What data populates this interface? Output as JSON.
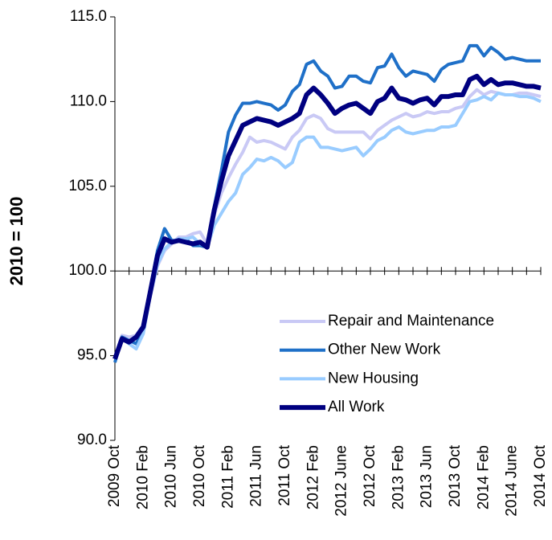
{
  "chart_data": {
    "type": "line",
    "y_label": "2010 = 100",
    "categories": [
      "2009 Oct",
      null,
      null,
      null,
      "2010 Feb",
      null,
      null,
      null,
      "2010 Jun",
      null,
      null,
      null,
      "2010 Oct",
      null,
      null,
      null,
      "2011 Feb",
      null,
      null,
      null,
      "2011 Jun",
      null,
      null,
      null,
      "2011 Oct",
      null,
      null,
      null,
      "2012 Feb",
      null,
      null,
      null,
      "2012 June",
      null,
      null,
      null,
      "2012 Oct",
      null,
      null,
      null,
      "2013 Feb",
      null,
      null,
      null,
      "2013 Jun",
      null,
      null,
      null,
      "2013 Oct",
      null,
      null,
      null,
      "2014 Feb",
      null,
      null,
      null,
      "2014 June",
      null,
      null,
      null,
      "2014 Oct"
    ],
    "series": [
      {
        "name": "Repair and Maintenance",
        "color": "#c9c9f5",
        "values": [
          94.9,
          96.2,
          96.1,
          96.2,
          96.8,
          98.5,
          100.3,
          101.2,
          101.6,
          102.0,
          102.0,
          102.2,
          102.3,
          101.6,
          103.3,
          104.6,
          105.5,
          106.3,
          107.0,
          107.9,
          107.6,
          107.7,
          107.6,
          107.4,
          107.2,
          107.9,
          108.3,
          109.0,
          109.2,
          109.0,
          108.4,
          108.2,
          108.2,
          108.2,
          108.2,
          108.2,
          107.8,
          108.3,
          108.6,
          108.9,
          109.1,
          109.3,
          109.1,
          109.2,
          109.4,
          109.3,
          109.4,
          109.4,
          109.6,
          109.7,
          110.3,
          110.7,
          110.4,
          110.6,
          110.5,
          110.4,
          110.4,
          110.5,
          110.5,
          110.4,
          110.3
        ]
      },
      {
        "name": "Other New Work",
        "color": "#1f70c8",
        "values": [
          94.6,
          96.1,
          95.9,
          95.7,
          96.6,
          99.0,
          101.2,
          102.5,
          101.8,
          101.8,
          101.9,
          101.5,
          101.5,
          101.4,
          103.8,
          105.9,
          108.2,
          109.2,
          109.9,
          109.9,
          110.0,
          109.9,
          109.8,
          109.5,
          109.8,
          110.6,
          111.0,
          112.2,
          112.4,
          111.8,
          111.5,
          110.8,
          110.9,
          111.5,
          111.5,
          111.2,
          111.1,
          112.0,
          112.1,
          112.8,
          112.0,
          111.5,
          111.8,
          111.7,
          111.6,
          111.2,
          111.9,
          112.2,
          112.3,
          112.4,
          113.3,
          113.3,
          112.7,
          113.2,
          112.9,
          112.5,
          112.6,
          112.5,
          112.4,
          112.4,
          112.4
        ]
      },
      {
        "name": "New Housing",
        "color": "#99ccff",
        "values": [
          94.9,
          96.0,
          95.7,
          95.4,
          96.3,
          98.6,
          100.4,
          101.3,
          101.7,
          101.9,
          101.9,
          102.0,
          101.6,
          101.4,
          102.7,
          103.4,
          104.1,
          104.6,
          105.7,
          106.1,
          106.6,
          106.5,
          106.7,
          106.5,
          106.1,
          106.4,
          107.6,
          107.9,
          107.9,
          107.3,
          107.3,
          107.2,
          107.1,
          107.2,
          107.3,
          106.8,
          107.2,
          107.7,
          107.9,
          108.3,
          108.5,
          108.2,
          108.1,
          108.2,
          108.3,
          108.3,
          108.5,
          108.5,
          108.6,
          109.3,
          110.0,
          110.1,
          110.3,
          110.1,
          110.5,
          110.4,
          110.4,
          110.3,
          110.3,
          110.2,
          110.0
        ]
      },
      {
        "name": "All Work",
        "color": "#000080",
        "values": [
          94.8,
          96.0,
          95.8,
          96.1,
          96.7,
          98.8,
          100.9,
          101.9,
          101.7,
          101.8,
          101.7,
          101.6,
          101.7,
          101.4,
          103.6,
          105.3,
          106.8,
          107.7,
          108.6,
          108.8,
          109.0,
          108.9,
          108.8,
          108.6,
          108.8,
          109.0,
          109.3,
          110.4,
          110.8,
          110.4,
          109.9,
          109.3,
          109.6,
          109.8,
          109.9,
          109.6,
          109.3,
          110.0,
          110.2,
          110.8,
          110.2,
          110.1,
          109.9,
          110.1,
          110.2,
          109.8,
          110.3,
          110.3,
          110.4,
          110.4,
          111.3,
          111.5,
          111.0,
          111.3,
          111.0,
          111.1,
          111.1,
          111.0,
          110.9,
          110.9,
          110.8
        ]
      }
    ],
    "ylim": [
      90,
      115
    ],
    "yticks": [
      {
        "value": 90,
        "label": "90.0"
      },
      {
        "value": 95,
        "label": "95.0"
      },
      {
        "value": 100,
        "label": "100.0"
      },
      {
        "value": 105,
        "label": "105.0"
      },
      {
        "value": 110,
        "label": "110.0"
      },
      {
        "value": 115,
        "label": "115.0"
      }
    ],
    "x_axis_crosses": 100
  }
}
